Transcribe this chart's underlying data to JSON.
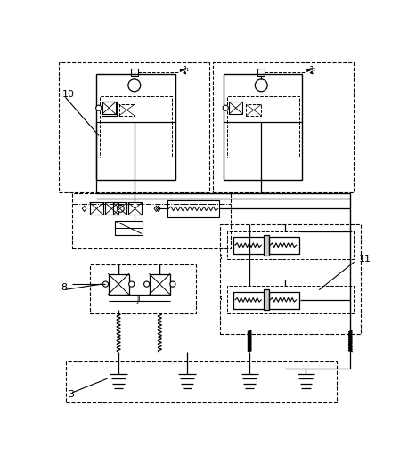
{
  "fig_width": 4.58,
  "fig_height": 5.29,
  "dpi": 100,
  "bg_color": "#ffffff",
  "lc": "black",
  "labels": {
    "l10": "10",
    "l11": "11",
    "l8": "8",
    "l3": "3"
  }
}
